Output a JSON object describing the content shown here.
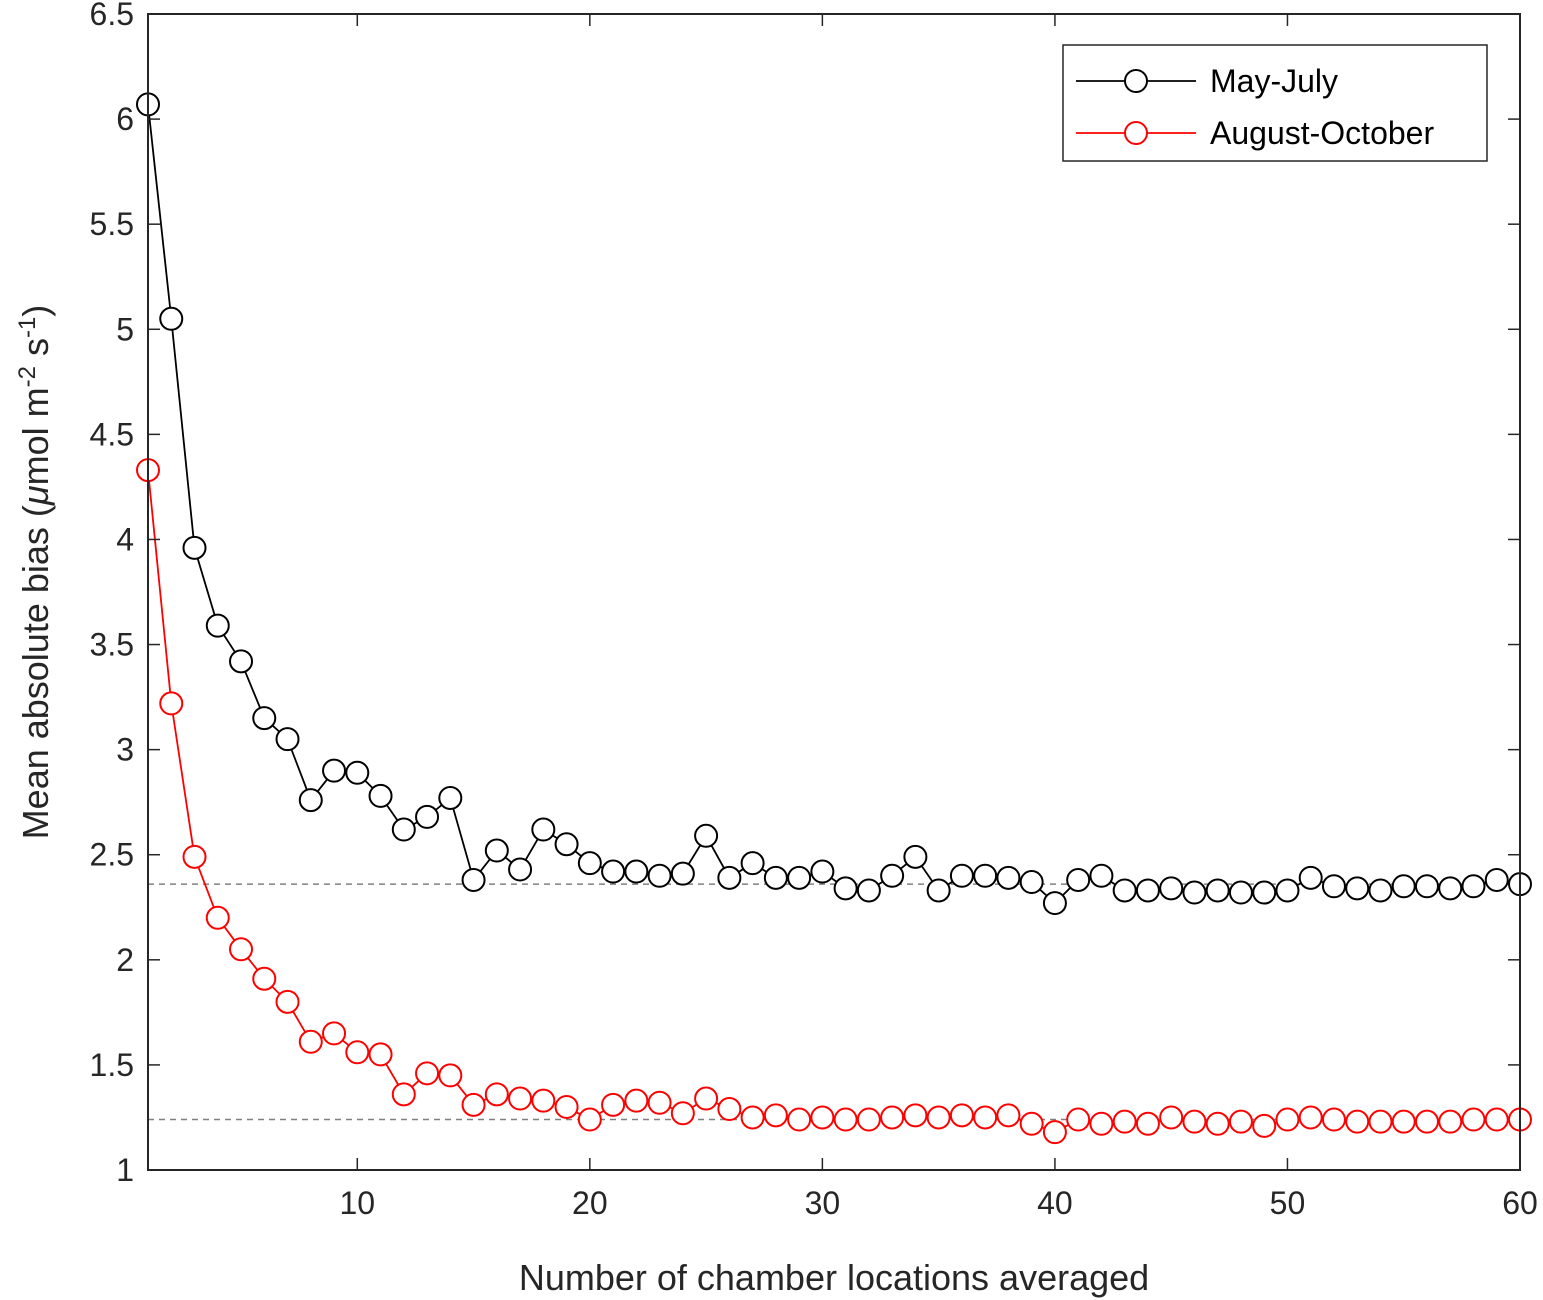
{
  "chart_data": {
    "type": "line",
    "xlabel": "Number of chamber locations averaged",
    "ylabel": "Mean absolute bias (μmol m⁻² s⁻¹)",
    "ylabel_parts": {
      "prefix": "Mean absolute bias (",
      "mu": "μ",
      "mid1": "mol m",
      "sup1": "-2",
      "mid2": " s",
      "sup2": "-1",
      "suffix": ")"
    },
    "xlim": [
      1,
      60
    ],
    "ylim": [
      1,
      6.5
    ],
    "xticks": [
      10,
      20,
      30,
      40,
      50,
      60
    ],
    "yticks": [
      1,
      1.5,
      2,
      2.5,
      3,
      3.5,
      4,
      4.5,
      5,
      5.5,
      6,
      6.5
    ],
    "grid": false,
    "legend_position": "top-right",
    "reference_lines": [
      {
        "y": 2.36,
        "style": "dashed",
        "color": "#808080"
      },
      {
        "y": 1.24,
        "style": "dashed",
        "color": "#808080"
      }
    ],
    "series": [
      {
        "name": "May-July",
        "color": "#000000",
        "marker": "open-circle",
        "x": [
          1,
          2,
          3,
          4,
          5,
          6,
          7,
          8,
          9,
          10,
          11,
          12,
          13,
          14,
          15,
          16,
          17,
          18,
          19,
          20,
          21,
          22,
          23,
          24,
          25,
          26,
          27,
          28,
          29,
          30,
          31,
          32,
          33,
          34,
          35,
          36,
          37,
          38,
          39,
          40,
          41,
          42,
          43,
          44,
          45,
          46,
          47,
          48,
          49,
          50,
          51,
          52,
          53,
          54,
          55,
          56,
          57,
          58,
          59,
          60
        ],
        "y": [
          6.07,
          5.05,
          3.96,
          3.59,
          3.42,
          3.15,
          3.05,
          2.76,
          2.9,
          2.89,
          2.78,
          2.62,
          2.68,
          2.77,
          2.38,
          2.52,
          2.43,
          2.62,
          2.55,
          2.46,
          2.42,
          2.42,
          2.4,
          2.41,
          2.59,
          2.39,
          2.46,
          2.39,
          2.39,
          2.42,
          2.34,
          2.33,
          2.4,
          2.49,
          2.33,
          2.4,
          2.4,
          2.39,
          2.37,
          2.27,
          2.38,
          2.4,
          2.33,
          2.33,
          2.34,
          2.32,
          2.33,
          2.32,
          2.32,
          2.33,
          2.39,
          2.35,
          2.34,
          2.33,
          2.35,
          2.35,
          2.34,
          2.35,
          2.38,
          2.36
        ]
      },
      {
        "name": "August-October",
        "color": "#ff0000",
        "marker": "open-circle",
        "x": [
          1,
          2,
          3,
          4,
          5,
          6,
          7,
          8,
          9,
          10,
          11,
          12,
          13,
          14,
          15,
          16,
          17,
          18,
          19,
          20,
          21,
          22,
          23,
          24,
          25,
          26,
          27,
          28,
          29,
          30,
          31,
          32,
          33,
          34,
          35,
          36,
          37,
          38,
          39,
          40,
          41,
          42,
          43,
          44,
          45,
          46,
          47,
          48,
          49,
          50,
          51,
          52,
          53,
          54,
          55,
          56,
          57,
          58,
          59,
          60
        ],
        "y": [
          4.33,
          3.22,
          2.49,
          2.2,
          2.05,
          1.91,
          1.8,
          1.61,
          1.65,
          1.56,
          1.55,
          1.36,
          1.46,
          1.45,
          1.31,
          1.36,
          1.34,
          1.33,
          1.3,
          1.24,
          1.31,
          1.33,
          1.32,
          1.27,
          1.34,
          1.29,
          1.25,
          1.26,
          1.24,
          1.25,
          1.24,
          1.24,
          1.25,
          1.26,
          1.25,
          1.26,
          1.25,
          1.26,
          1.22,
          1.18,
          1.24,
          1.22,
          1.23,
          1.22,
          1.25,
          1.23,
          1.22,
          1.23,
          1.21,
          1.24,
          1.25,
          1.24,
          1.23,
          1.23,
          1.23,
          1.23,
          1.23,
          1.24,
          1.24,
          1.24
        ]
      }
    ]
  }
}
